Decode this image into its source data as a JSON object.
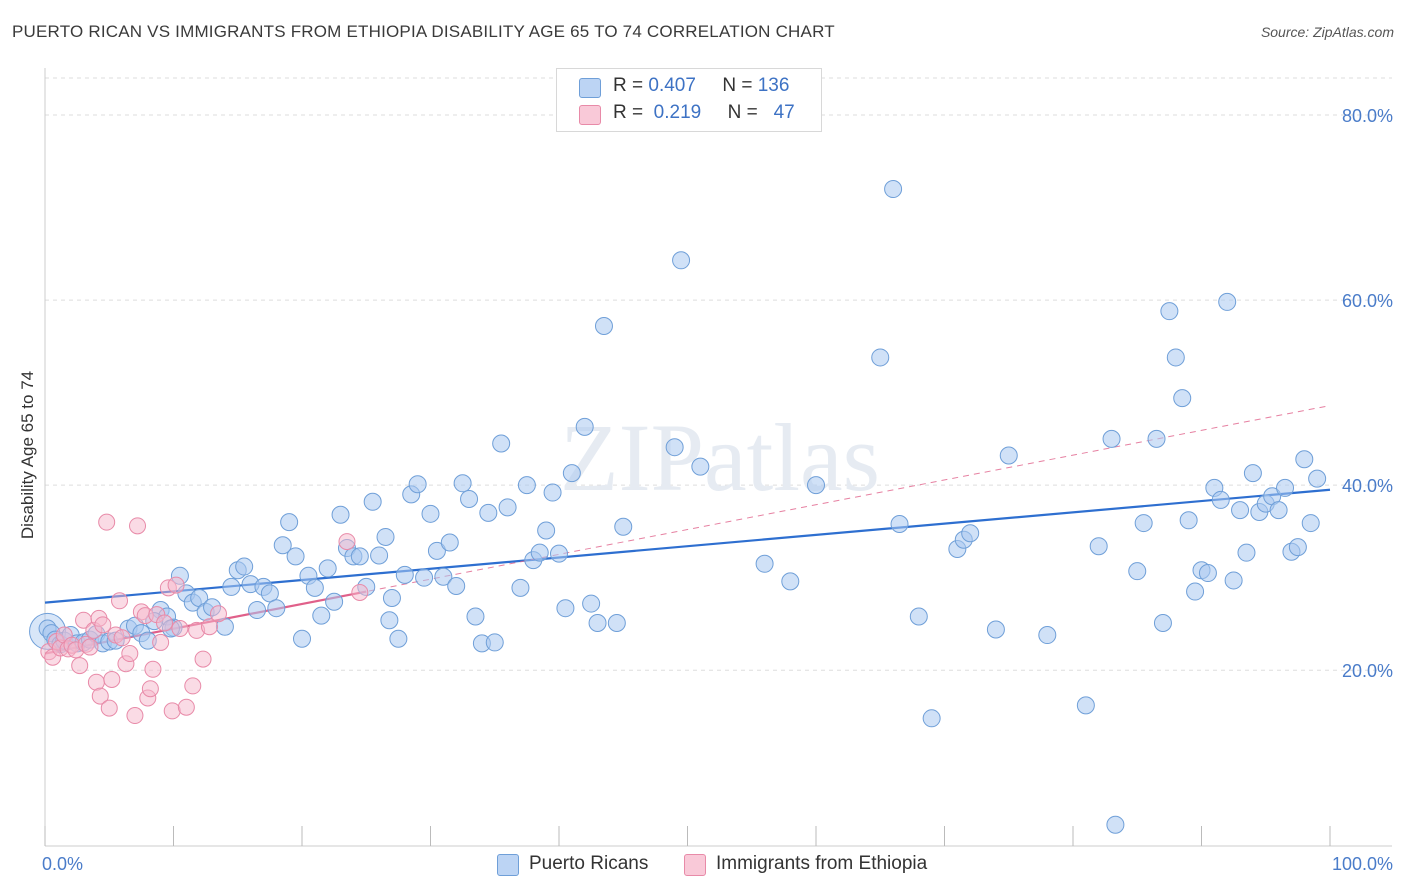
{
  "title": "PUERTO RICAN VS IMMIGRANTS FROM ETHIOPIA DISABILITY AGE 65 TO 74 CORRELATION CHART",
  "source": "Source: ZipAtlas.com",
  "watermark": "ZIPatlas",
  "colors": {
    "blue_fill": "#a9c8f0",
    "blue_stroke": "#6f9fd8",
    "blue_line": "#2e6fd0",
    "pink_fill": "#f6b8cc",
    "pink_stroke": "#e88aa8",
    "pink_line": "#e0608a",
    "tick_text": "#4a7cc9",
    "grid": "#dddddd"
  },
  "legend": {
    "rows": [
      {
        "r_label": "R =",
        "r_value": "0.407",
        "n_label": "N =",
        "n_value": "136",
        "color": "#a9c8f0"
      },
      {
        "r_label": "R =",
        "r_value": "0.219",
        "n_label": "N =",
        "n_value": "47",
        "color": "#f6b8cc"
      }
    ]
  },
  "bottom_legend": [
    {
      "label": "Puerto Ricans",
      "color": "#a9c8f0"
    },
    {
      "label": "Immigrants from Ethiopia",
      "color": "#f6b8cc"
    }
  ],
  "chart_data": {
    "type": "scatter",
    "title": "PUERTO RICAN VS IMMIGRANTS FROM ETHIOPIA DISABILITY AGE 65 TO 74 CORRELATION CHART",
    "xlabel": "",
    "ylabel": "Disability Age 65 to 74",
    "xlim": [
      0,
      100
    ],
    "ylim": [
      1,
      84
    ],
    "x_tick_labels": [
      "0.0%",
      "100.0%"
    ],
    "y_ticks": [
      20,
      40,
      60,
      80
    ],
    "y_tick_labels": [
      "20.0%",
      "40.0%",
      "60.0%",
      "80.0%"
    ],
    "grid": true,
    "series": [
      {
        "name": "Puerto Ricans",
        "color": "#a9c8f0",
        "points": [
          [
            0.2,
            24.5
          ],
          [
            0.5,
            24
          ],
          [
            0.8,
            23.3
          ],
          [
            1.2,
            22.8
          ],
          [
            1.5,
            23.2
          ],
          [
            2,
            23.8
          ],
          [
            2.5,
            22.9
          ],
          [
            3,
            23
          ],
          [
            3.5,
            23.3
          ],
          [
            4,
            23.9
          ],
          [
            4.5,
            22.9
          ],
          [
            5,
            23.1
          ],
          [
            5.5,
            23.2
          ],
          [
            6.5,
            24.5
          ],
          [
            7,
            24.8
          ],
          [
            7.5,
            24
          ],
          [
            8,
            23.2
          ],
          [
            9,
            26.5
          ],
          [
            9.5,
            25.8
          ],
          [
            10,
            24.6
          ],
          [
            8.5,
            25.3
          ],
          [
            11,
            28.3
          ],
          [
            11.5,
            27.3
          ],
          [
            12,
            27.8
          ],
          [
            12.5,
            26.3
          ],
          [
            13,
            26.8
          ],
          [
            14,
            24.7
          ],
          [
            9.8,
            24.5
          ],
          [
            10.5,
            30.2
          ],
          [
            14.5,
            29
          ],
          [
            15,
            30.8
          ],
          [
            15.5,
            31.2
          ],
          [
            16,
            29.3
          ],
          [
            16.5,
            26.5
          ],
          [
            17,
            29
          ],
          [
            17.5,
            28.3
          ],
          [
            18,
            26.7
          ],
          [
            18.5,
            33.5
          ],
          [
            19,
            36
          ],
          [
            19.5,
            32.3
          ],
          [
            20,
            23.4
          ],
          [
            20.5,
            30.2
          ],
          [
            21,
            28.9
          ],
          [
            21.5,
            25.9
          ],
          [
            22,
            31
          ],
          [
            22.5,
            27.4
          ],
          [
            23,
            36.8
          ],
          [
            23.5,
            33.2
          ],
          [
            24,
            32.3
          ],
          [
            24.5,
            32.3
          ],
          [
            25,
            29
          ],
          [
            25.5,
            38.2
          ],
          [
            26,
            32.4
          ],
          [
            26.5,
            34.4
          ],
          [
            26.8,
            25.4
          ],
          [
            27,
            27.8
          ],
          [
            27.5,
            23.4
          ],
          [
            28,
            30.3
          ],
          [
            28.5,
            39
          ],
          [
            29,
            40.1
          ],
          [
            29.5,
            30
          ],
          [
            30,
            36.9
          ],
          [
            30.5,
            32.9
          ],
          [
            31,
            30.1
          ],
          [
            31.5,
            33.8
          ],
          [
            32,
            29.1
          ],
          [
            32.5,
            40.2
          ],
          [
            33,
            38.5
          ],
          [
            33.5,
            25.8
          ],
          [
            34,
            22.9
          ],
          [
            34.5,
            37
          ],
          [
            35,
            23
          ],
          [
            36,
            37.6
          ],
          [
            37,
            28.9
          ],
          [
            37.5,
            40
          ],
          [
            38,
            31.9
          ],
          [
            38.5,
            32.7
          ],
          [
            39,
            35.1
          ],
          [
            39.5,
            39.2
          ],
          [
            40,
            32.6
          ],
          [
            40.5,
            26.7
          ],
          [
            41,
            41.3
          ],
          [
            42,
            46.3
          ],
          [
            42.5,
            27.2
          ],
          [
            43,
            25.1
          ],
          [
            43.5,
            57.2
          ],
          [
            44.5,
            25.1
          ],
          [
            45,
            35.5
          ],
          [
            35.5,
            44.5
          ],
          [
            49,
            44.1
          ],
          [
            49.5,
            64.3
          ],
          [
            51,
            42
          ],
          [
            56,
            31.5
          ],
          [
            58,
            29.6
          ],
          [
            60,
            40
          ],
          [
            65,
            53.8
          ],
          [
            66,
            72
          ],
          [
            66.5,
            35.8
          ],
          [
            68,
            25.8
          ],
          [
            69,
            14.8
          ],
          [
            71,
            33.1
          ],
          [
            71.5,
            34.1
          ],
          [
            72,
            34.8
          ],
          [
            74,
            24.4
          ],
          [
            75,
            43.2
          ],
          [
            78,
            23.8
          ],
          [
            81,
            16.2
          ],
          [
            82,
            33.4
          ],
          [
            83,
            45
          ],
          [
            83.3,
            3.3
          ],
          [
            85,
            30.7
          ],
          [
            85.5,
            35.9
          ],
          [
            86.5,
            45
          ],
          [
            87,
            25.1
          ],
          [
            87.5,
            58.8
          ],
          [
            88,
            53.8
          ],
          [
            88.5,
            49.4
          ],
          [
            89,
            36.2
          ],
          [
            89.5,
            28.5
          ],
          [
            90,
            30.8
          ],
          [
            90.5,
            30.5
          ],
          [
            91,
            39.7
          ],
          [
            91.5,
            38.4
          ],
          [
            92,
            59.8
          ],
          [
            92.5,
            29.7
          ],
          [
            93,
            37.3
          ],
          [
            93.5,
            32.7
          ],
          [
            94,
            41.3
          ],
          [
            94.5,
            37.1
          ],
          [
            95,
            38
          ],
          [
            95.5,
            38.8
          ],
          [
            96,
            37.3
          ],
          [
            96.5,
            39.7
          ],
          [
            97,
            32.8
          ],
          [
            97.5,
            33.3
          ],
          [
            98,
            42.8
          ],
          [
            98.5,
            35.9
          ],
          [
            99,
            40.7
          ]
        ],
        "trend": {
          "x": [
            0,
            100
          ],
          "y": [
            27.3,
            39.5
          ]
        }
      },
      {
        "name": "Immigrants from Ethiopia",
        "color": "#f6b8cc",
        "points": [
          [
            0.3,
            22
          ],
          [
            0.6,
            21.4
          ],
          [
            0.9,
            23.1
          ],
          [
            1.2,
            22.4
          ],
          [
            1.5,
            23.8
          ],
          [
            1.8,
            22.3
          ],
          [
            2.1,
            22.7
          ],
          [
            2.4,
            22.2
          ],
          [
            2.7,
            20.5
          ],
          [
            3,
            25.4
          ],
          [
            3.2,
            22.8
          ],
          [
            3.5,
            22.5
          ],
          [
            3.8,
            24.3
          ],
          [
            4,
            18.7
          ],
          [
            4.2,
            25.6
          ],
          [
            4.3,
            17.2
          ],
          [
            4.5,
            24.9
          ],
          [
            4.8,
            36
          ],
          [
            5,
            15.9
          ],
          [
            5.2,
            19
          ],
          [
            5.5,
            23.8
          ],
          [
            5.8,
            27.5
          ],
          [
            6,
            23.5
          ],
          [
            6.3,
            20.7
          ],
          [
            6.6,
            21.8
          ],
          [
            7,
            15.1
          ],
          [
            7.2,
            35.6
          ],
          [
            7.5,
            26.3
          ],
          [
            7.8,
            25.9
          ],
          [
            8,
            17
          ],
          [
            8.2,
            18
          ],
          [
            8.4,
            20.1
          ],
          [
            8.7,
            26
          ],
          [
            9,
            23
          ],
          [
            9.3,
            25.1
          ],
          [
            9.6,
            28.9
          ],
          [
            9.9,
            15.6
          ],
          [
            10.2,
            29.2
          ],
          [
            10.5,
            24.5
          ],
          [
            11,
            16
          ],
          [
            11.5,
            18.3
          ],
          [
            11.8,
            24.3
          ],
          [
            12.3,
            21.2
          ],
          [
            12.8,
            24.7
          ],
          [
            13.5,
            26.1
          ],
          [
            23.5,
            33.9
          ],
          [
            24.5,
            28.4
          ]
        ],
        "trend": {
          "x": [
            0,
            25
          ],
          "y": [
            21.8,
            28.5
          ]
        },
        "trend_extension": {
          "x": [
            0,
            100
          ],
          "y": [
            21.8,
            48.6
          ]
        }
      }
    ]
  }
}
